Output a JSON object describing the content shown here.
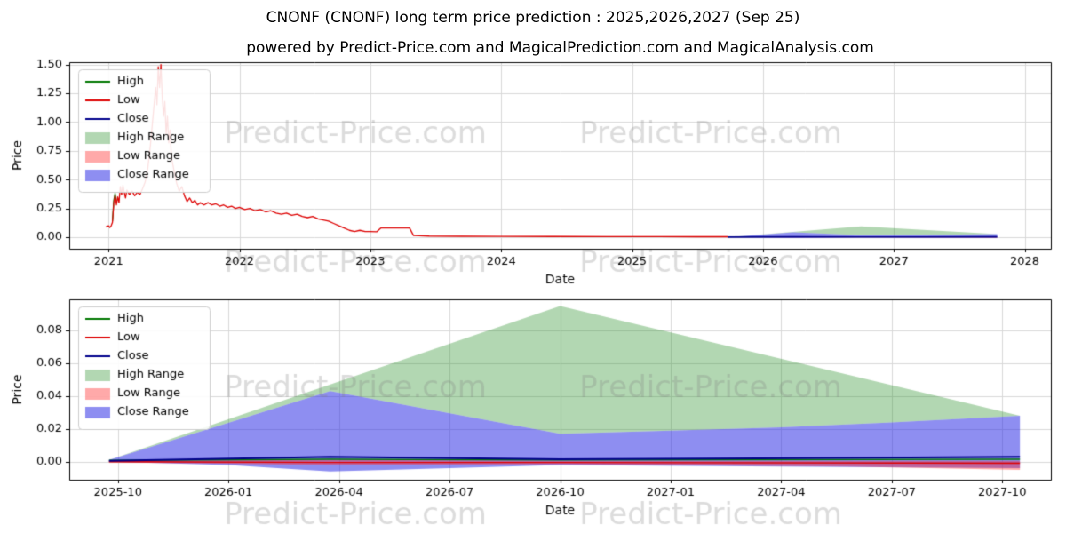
{
  "title": "CNONF (CNONF) long term price prediction : 2025,2026,2027 (Sep 25)",
  "subtitle": "powered by Predict-Price.com and MagicalPrediction.com and MagicalAnalysis.com",
  "watermark": "Predict-Price.com",
  "colors": {
    "high_line": "#007700",
    "low_line": "#dd0000",
    "close_line": "#00008b",
    "high_range_fill": "rgba(34,139,34,0.35)",
    "low_range_fill": "rgba(255,40,40,0.4)",
    "close_range_fill": "rgba(50,50,230,0.55)",
    "grid": "#d8d8d8",
    "axis": "#000000",
    "watermark_color": "rgba(128,128,128,0.28)"
  },
  "chart_data": [
    {
      "type": "line",
      "name": "long-term-price-history-and-prediction",
      "xlabel": "Date",
      "ylabel": "Price",
      "xlim": [
        2020.7,
        2028.2
      ],
      "ylim": [
        -0.1,
        1.52
      ],
      "grid": true,
      "legend_position": "upper-left",
      "xticks": [
        2021,
        2022,
        2023,
        2024,
        2025,
        2026,
        2027,
        2028
      ],
      "xtick_labels": [
        "2021",
        "2022",
        "2023",
        "2024",
        "2025",
        "2026",
        "2027",
        "2028"
      ],
      "yticks": [
        0,
        0.25,
        0.5,
        0.75,
        1.0,
        1.25,
        1.5
      ],
      "ytick_labels": [
        "0.00",
        "0.25",
        "0.50",
        "0.75",
        "1.00",
        "1.25",
        "1.50"
      ],
      "legend": [
        {
          "label": "High",
          "color": "high_line",
          "kind": "line"
        },
        {
          "label": "Low",
          "color": "low_line",
          "kind": "line"
        },
        {
          "label": "Close",
          "color": "close_line",
          "kind": "line"
        },
        {
          "label": "High Range",
          "color": "high_range_fill",
          "kind": "patch"
        },
        {
          "label": "Low Range",
          "color": "low_range_fill",
          "kind": "patch"
        },
        {
          "label": "Close Range",
          "color": "close_range_fill",
          "kind": "patch"
        }
      ],
      "areas": [
        {
          "name": "high-range",
          "color": "high_range_fill",
          "upper": [
            [
              2025.73,
              0.001
            ],
            [
              2026.75,
              0.095
            ],
            [
              2027.79,
              0.028
            ]
          ],
          "lower": [
            [
              2025.73,
              0.001
            ],
            [
              2026.23,
              0.043
            ],
            [
              2026.75,
              0.017
            ],
            [
              2027.0,
              0.019
            ],
            [
              2027.25,
              0.021
            ],
            [
              2027.5,
              0.024
            ],
            [
              2027.79,
              0.028
            ]
          ]
        },
        {
          "name": "close-range",
          "color": "close_range_fill",
          "upper": [
            [
              2025.73,
              0.001
            ],
            [
              2026.23,
              0.043
            ],
            [
              2026.75,
              0.017
            ],
            [
              2027.0,
              0.019
            ],
            [
              2027.25,
              0.021
            ],
            [
              2027.5,
              0.024
            ],
            [
              2027.79,
              0.028
            ]
          ],
          "lower": [
            [
              2025.73,
              0.0
            ],
            [
              2026.0,
              -0.002
            ],
            [
              2026.23,
              -0.006
            ],
            [
              2026.5,
              -0.004
            ],
            [
              2026.75,
              -0.002
            ],
            [
              2027.25,
              -0.003
            ],
            [
              2027.79,
              -0.004
            ]
          ]
        },
        {
          "name": "low-range",
          "color": "low_range_fill",
          "upper": [
            [
              2025.73,
              0.0005
            ],
            [
              2026.23,
              0.001
            ],
            [
              2026.75,
              0.0005
            ],
            [
              2027.79,
              0.0005
            ]
          ],
          "lower": [
            [
              2025.73,
              -0.0005
            ],
            [
              2026.23,
              -0.002
            ],
            [
              2026.75,
              -0.0015
            ],
            [
              2027.4,
              -0.003
            ],
            [
              2027.79,
              -0.005
            ]
          ]
        }
      ],
      "lines": [
        {
          "name": "high-history",
          "color": "high_line",
          "width": 1.3,
          "points": [
            [
              2021.03,
              0.14
            ],
            [
              2021.04,
              0.32
            ],
            [
              2021.05,
              0.38
            ],
            [
              2021.06,
              0.31
            ]
          ]
        },
        {
          "name": "low-history",
          "color": "low_line",
          "width": 1.3,
          "points": [
            [
              2020.98,
              0.09
            ],
            [
              2021.0,
              0.1
            ],
            [
              2021.01,
              0.085
            ],
            [
              2021.02,
              0.1
            ],
            [
              2021.03,
              0.13
            ],
            [
              2021.04,
              0.3
            ],
            [
              2021.05,
              0.36
            ],
            [
              2021.06,
              0.28
            ],
            [
              2021.07,
              0.35
            ],
            [
              2021.08,
              0.3
            ],
            [
              2021.09,
              0.44
            ],
            [
              2021.1,
              0.37
            ],
            [
              2021.11,
              0.45
            ],
            [
              2021.12,
              0.39
            ],
            [
              2021.13,
              0.34
            ],
            [
              2021.14,
              0.41
            ],
            [
              2021.16,
              0.37
            ],
            [
              2021.18,
              0.4
            ],
            [
              2021.2,
              0.36
            ],
            [
              2021.22,
              0.39
            ],
            [
              2021.24,
              0.37
            ],
            [
              2021.26,
              0.42
            ],
            [
              2021.28,
              0.48
            ],
            [
              2021.3,
              0.6
            ],
            [
              2021.32,
              0.8
            ],
            [
              2021.34,
              1.05
            ],
            [
              2021.36,
              1.3
            ],
            [
              2021.37,
              1.15
            ],
            [
              2021.38,
              1.48
            ],
            [
              2021.39,
              1.3
            ],
            [
              2021.4,
              1.5
            ],
            [
              2021.41,
              1.22
            ],
            [
              2021.42,
              1.05
            ],
            [
              2021.43,
              1.18
            ],
            [
              2021.44,
              0.9
            ],
            [
              2021.45,
              1.05
            ],
            [
              2021.46,
              0.82
            ],
            [
              2021.47,
              0.93
            ],
            [
              2021.48,
              0.7
            ],
            [
              2021.5,
              0.58
            ],
            [
              2021.52,
              0.47
            ],
            [
              2021.54,
              0.4
            ],
            [
              2021.56,
              0.44
            ],
            [
              2021.58,
              0.36
            ],
            [
              2021.6,
              0.31
            ],
            [
              2021.62,
              0.34
            ],
            [
              2021.64,
              0.3
            ],
            [
              2021.66,
              0.32
            ],
            [
              2021.68,
              0.28
            ],
            [
              2021.7,
              0.3
            ],
            [
              2021.73,
              0.28
            ],
            [
              2021.76,
              0.3
            ],
            [
              2021.79,
              0.28
            ],
            [
              2021.82,
              0.29
            ],
            [
              2021.85,
              0.27
            ],
            [
              2021.88,
              0.28
            ],
            [
              2021.91,
              0.26
            ],
            [
              2021.94,
              0.27
            ],
            [
              2021.97,
              0.25
            ],
            [
              2022.0,
              0.26
            ],
            [
              2022.04,
              0.24
            ],
            [
              2022.08,
              0.25
            ],
            [
              2022.12,
              0.23
            ],
            [
              2022.16,
              0.24
            ],
            [
              2022.2,
              0.22
            ],
            [
              2022.24,
              0.23
            ],
            [
              2022.28,
              0.21
            ],
            [
              2022.32,
              0.2
            ],
            [
              2022.36,
              0.21
            ],
            [
              2022.4,
              0.19
            ],
            [
              2022.44,
              0.2
            ],
            [
              2022.48,
              0.18
            ],
            [
              2022.52,
              0.17
            ],
            [
              2022.56,
              0.18
            ],
            [
              2022.6,
              0.16
            ],
            [
              2022.64,
              0.15
            ],
            [
              2022.68,
              0.14
            ],
            [
              2022.72,
              0.12
            ],
            [
              2022.76,
              0.1
            ],
            [
              2022.8,
              0.08
            ],
            [
              2022.84,
              0.06
            ],
            [
              2022.88,
              0.05
            ],
            [
              2022.92,
              0.06
            ],
            [
              2022.96,
              0.05
            ],
            [
              2023.0,
              0.05
            ],
            [
              2023.05,
              0.048
            ],
            [
              2023.08,
              0.08
            ],
            [
              2023.15,
              0.08
            ],
            [
              2023.22,
              0.08
            ],
            [
              2023.3,
              0.08
            ],
            [
              2023.33,
              0.015
            ],
            [
              2023.45,
              0.01
            ],
            [
              2023.7,
              0.008
            ],
            [
              2024.0,
              0.007
            ],
            [
              2024.4,
              0.006
            ],
            [
              2024.8,
              0.005
            ],
            [
              2025.2,
              0.005
            ],
            [
              2025.5,
              0.004
            ],
            [
              2025.73,
              0.004
            ]
          ]
        },
        {
          "name": "close-prediction",
          "color": "close_line",
          "width": 1.6,
          "points": [
            [
              2025.73,
              0.001
            ],
            [
              2026.23,
              0.003
            ],
            [
              2026.75,
              0.002
            ],
            [
              2027.2,
              0.002
            ],
            [
              2027.79,
              0.003
            ]
          ]
        }
      ]
    },
    {
      "type": "area",
      "name": "prediction-detail-2025-2027",
      "xlabel": "Date",
      "ylabel": "Price",
      "xlim": [
        2025.64,
        2027.86
      ],
      "ylim": [
        -0.011,
        0.099
      ],
      "grid": true,
      "legend_position": "upper-left",
      "xticks": [
        2025.75,
        2026.0,
        2026.25,
        2026.5,
        2026.75,
        2027.0,
        2027.25,
        2027.5,
        2027.75
      ],
      "xtick_labels": [
        "2025-10",
        "2026-01",
        "2026-04",
        "2026-07",
        "2026-10",
        "2027-01",
        "2027-04",
        "2027-07",
        "2027-10"
      ],
      "yticks": [
        0,
        0.02,
        0.04,
        0.06,
        0.08
      ],
      "ytick_labels": [
        "0.00",
        "0.02",
        "0.04",
        "0.06",
        "0.08"
      ],
      "legend": [
        {
          "label": "High",
          "color": "high_line",
          "kind": "line"
        },
        {
          "label": "Low",
          "color": "low_line",
          "kind": "line"
        },
        {
          "label": "Close",
          "color": "close_line",
          "kind": "line"
        },
        {
          "label": "High Range",
          "color": "high_range_fill",
          "kind": "patch"
        },
        {
          "label": "Low Range",
          "color": "low_range_fill",
          "kind": "patch"
        },
        {
          "label": "Close Range",
          "color": "close_range_fill",
          "kind": "patch"
        }
      ],
      "areas": [
        {
          "name": "high-range",
          "color": "high_range_fill",
          "upper": [
            [
              2025.73,
              0.001
            ],
            [
              2026.75,
              0.095
            ],
            [
              2027.79,
              0.028
            ]
          ],
          "lower": [
            [
              2025.73,
              0.001
            ],
            [
              2026.23,
              0.043
            ],
            [
              2026.75,
              0.017
            ],
            [
              2027.0,
              0.019
            ],
            [
              2027.25,
              0.021
            ],
            [
              2027.5,
              0.024
            ],
            [
              2027.79,
              0.028
            ]
          ]
        },
        {
          "name": "close-range",
          "color": "close_range_fill",
          "upper": [
            [
              2025.73,
              0.001
            ],
            [
              2026.23,
              0.043
            ],
            [
              2026.75,
              0.017
            ],
            [
              2027.0,
              0.019
            ],
            [
              2027.25,
              0.021
            ],
            [
              2027.5,
              0.024
            ],
            [
              2027.79,
              0.028
            ]
          ],
          "lower": [
            [
              2025.73,
              0.0
            ],
            [
              2026.0,
              -0.002
            ],
            [
              2026.23,
              -0.006
            ],
            [
              2026.5,
              -0.004
            ],
            [
              2026.75,
              -0.002
            ],
            [
              2027.25,
              -0.003
            ],
            [
              2027.79,
              -0.004
            ]
          ]
        },
        {
          "name": "low-range",
          "color": "low_range_fill",
          "upper": [
            [
              2025.73,
              0.0005
            ],
            [
              2026.23,
              0.001
            ],
            [
              2026.75,
              0.0005
            ],
            [
              2027.79,
              0.0005
            ]
          ],
          "lower": [
            [
              2025.73,
              -0.0005
            ],
            [
              2026.23,
              -0.002
            ],
            [
              2026.75,
              -0.0015
            ],
            [
              2027.4,
              -0.003
            ],
            [
              2027.79,
              -0.005
            ]
          ]
        }
      ],
      "lines": [
        {
          "name": "high-prediction",
          "color": "high_line",
          "width": 1.4,
          "points": [
            [
              2025.73,
              0.0008
            ],
            [
              2026.23,
              0.0015
            ],
            [
              2026.75,
              0.001
            ],
            [
              2027.79,
              0.0015
            ]
          ]
        },
        {
          "name": "low-prediction",
          "color": "low_line",
          "width": 1.4,
          "points": [
            [
              2025.73,
              0.0
            ],
            [
              2026.23,
              -0.0005
            ],
            [
              2026.75,
              -0.0005
            ],
            [
              2027.79,
              -0.001
            ]
          ]
        },
        {
          "name": "close-prediction",
          "color": "close_line",
          "width": 2,
          "points": [
            [
              2025.73,
              0.0005
            ],
            [
              2026.23,
              0.003
            ],
            [
              2026.75,
              0.0015
            ],
            [
              2027.2,
              0.002
            ],
            [
              2027.79,
              0.003
            ]
          ]
        }
      ]
    }
  ]
}
